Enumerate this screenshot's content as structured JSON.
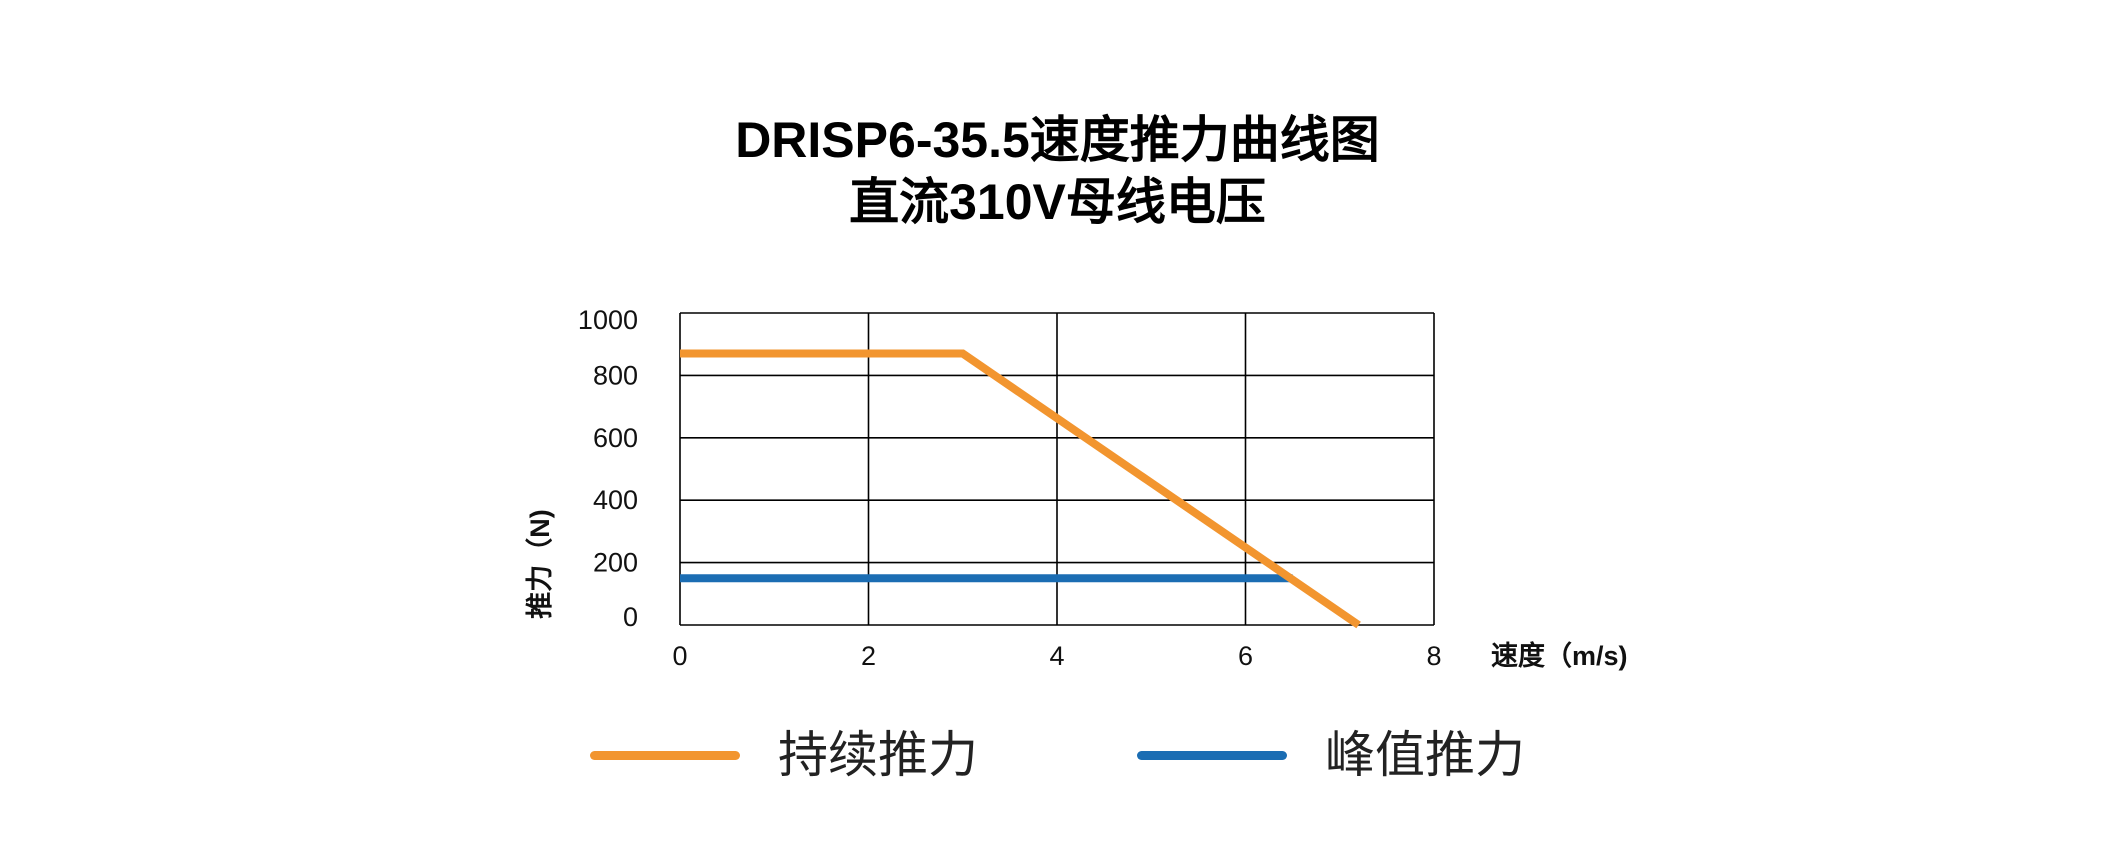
{
  "chart_data": {
    "type": "line",
    "title": "DRISP6-35.5速度推力曲线图",
    "subtitle": "直流310V母线电压",
    "xlabel": "速度（m/s)",
    "ylabel": "推力（N)",
    "xlim": [
      0,
      8
    ],
    "ylim": [
      0,
      1000
    ],
    "xticks": [
      0,
      2,
      4,
      6,
      8
    ],
    "yticks": [
      0,
      200,
      400,
      600,
      800,
      1000
    ],
    "grid": true,
    "legend_position": "bottom",
    "series": [
      {
        "name": "持续推力",
        "color": "#F2952F",
        "x": [
          0,
          3,
          7.2
        ],
        "y": [
          870,
          870,
          0
        ]
      },
      {
        "name": "峰值推力",
        "color": "#1B6DB3",
        "x": [
          0,
          6.5
        ],
        "y": [
          150,
          150
        ]
      }
    ]
  }
}
